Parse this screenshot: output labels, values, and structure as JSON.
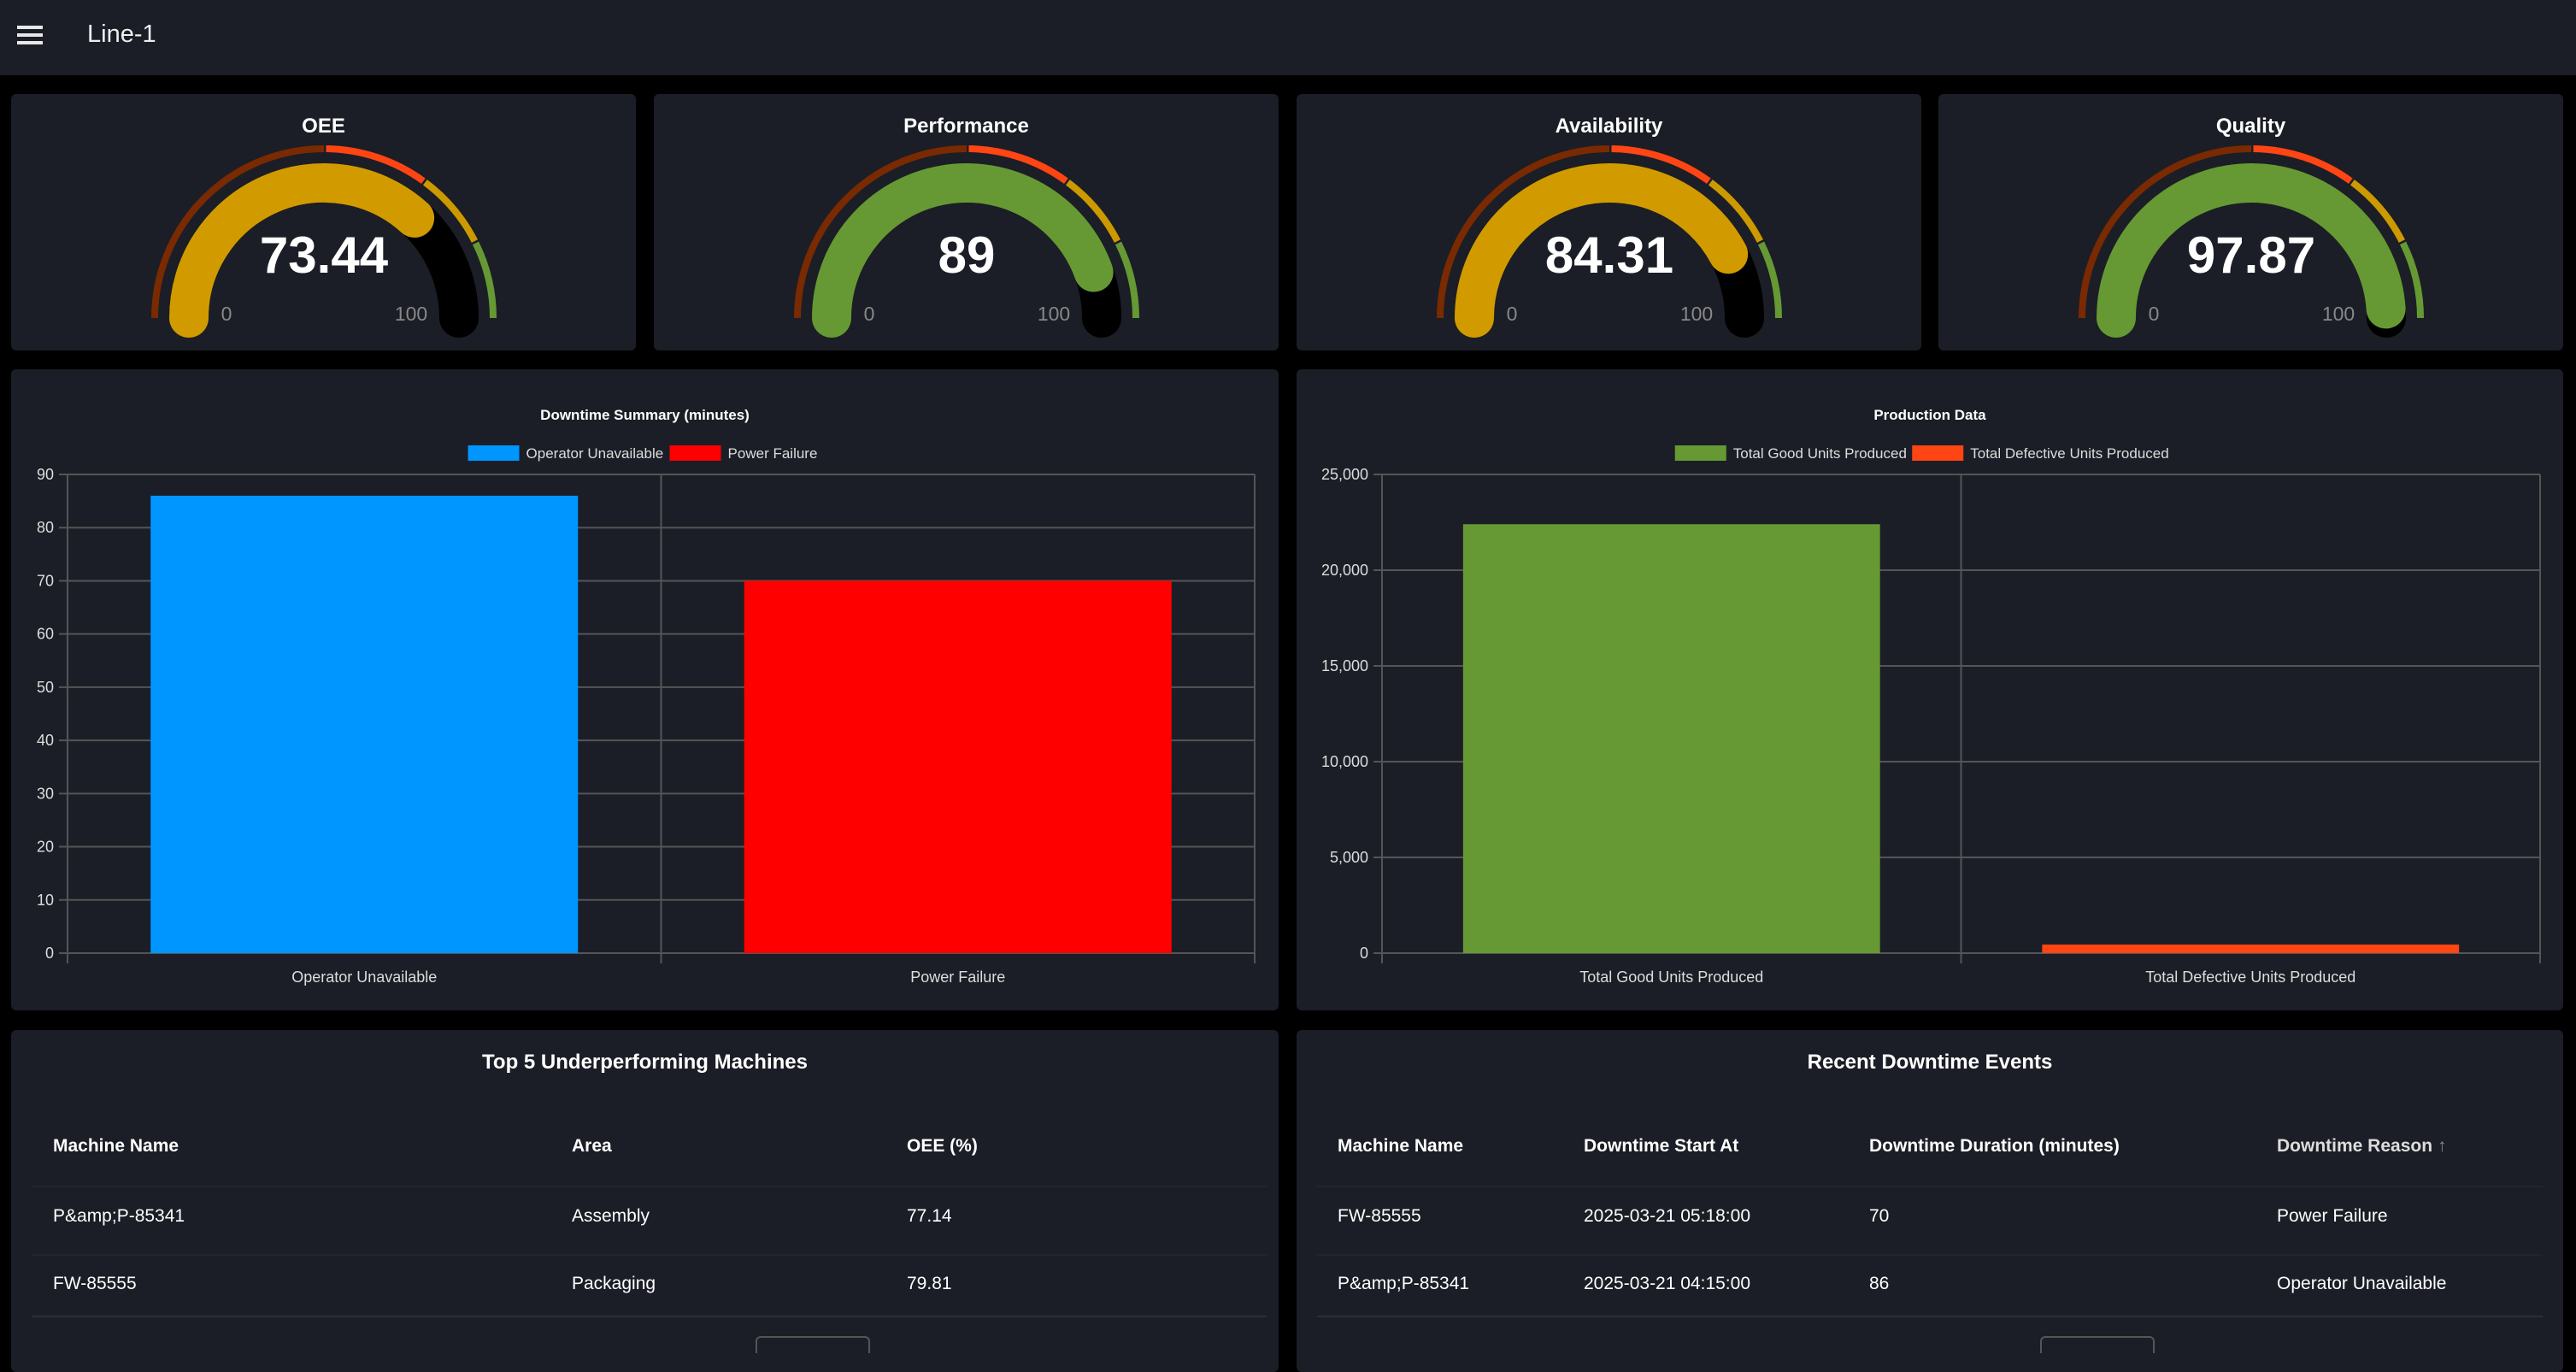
{
  "header": {
    "title": "Line-1",
    "menu_icon": "hamburger-icon"
  },
  "gauges": [
    {
      "label": "OEE",
      "value": "73.44",
      "num": 73.44,
      "min": "0",
      "max": "100",
      "color": "#d19b00"
    },
    {
      "label": "Performance",
      "value": "89",
      "num": 89,
      "min": "0",
      "max": "100",
      "color": "#669933"
    },
    {
      "label": "Availability",
      "value": "84.31",
      "num": 84.31,
      "min": "0",
      "max": "100",
      "color": "#d19b00"
    },
    {
      "label": "Quality",
      "value": "97.87",
      "num": 97.87,
      "min": "0",
      "max": "100",
      "color": "#669933"
    }
  ],
  "gauge_segments": [
    {
      "to": 50,
      "color": "#7a2a00"
    },
    {
      "to": 70,
      "color": "#ff4513"
    },
    {
      "to": 85,
      "color": "#cc9900"
    },
    {
      "to": 100,
      "color": "#669933"
    }
  ],
  "chart_data": [
    {
      "type": "bar",
      "title": "Downtime Summary (minutes)",
      "categories": [
        "Operator Unavailable",
        "Power Failure"
      ],
      "series": [
        {
          "name": "Operator Unavailable",
          "color": "#0096ff"
        },
        {
          "name": "Power Failure",
          "color": "#ff0000"
        }
      ],
      "values": [
        86,
        70
      ],
      "ylim": [
        0,
        90
      ],
      "yticks": [
        "0",
        "10",
        "20",
        "30",
        "40",
        "50",
        "60",
        "70",
        "80",
        "90"
      ],
      "grid": true,
      "legend": "top"
    },
    {
      "type": "bar",
      "title": "Production Data",
      "categories": [
        "Total Good Units Produced",
        "Total Defective Units Produced"
      ],
      "series": [
        {
          "name": "Total Good Units Produced",
          "color": "#669933"
        },
        {
          "name": "Total Defective Units Produced",
          "color": "#ff4513"
        }
      ],
      "values": [
        22400,
        450
      ],
      "ylim": [
        0,
        25000
      ],
      "yticks": [
        "0",
        "5,000",
        "10,000",
        "15,000",
        "20,000",
        "25,000"
      ],
      "grid": true,
      "legend": "top"
    }
  ],
  "machines": {
    "title": "Top 5 Underperforming Machines",
    "headers": [
      "Machine Name",
      "Area",
      "OEE (%)"
    ],
    "rows": [
      [
        "P&amp;P-85341",
        "Assembly",
        "77.14"
      ],
      [
        "FW-85555",
        "Packaging",
        "79.81"
      ]
    ]
  },
  "events": {
    "title": "Recent Downtime Events",
    "headers": [
      "Machine Name",
      "Downtime Start At",
      "Downtime Duration (minutes)",
      "Downtime Reason"
    ],
    "sort_icon": "arrow-up-icon",
    "rows": [
      [
        "FW-85555",
        "2025-03-21 05:18:00",
        "70",
        "Power Failure"
      ],
      [
        "P&amp;P-85341",
        "2025-03-21 04:15:00",
        "86",
        "Operator Unavailable"
      ]
    ]
  }
}
